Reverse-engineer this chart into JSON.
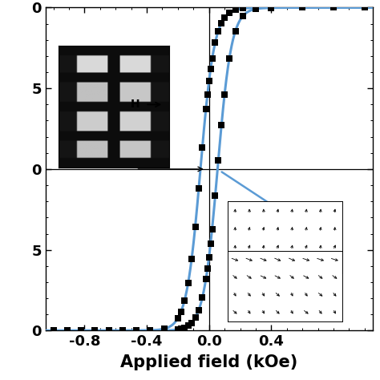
{
  "xlabel": "Applied field (kOe)",
  "xlim": [
    -1.05,
    1.05
  ],
  "ylim": [
    0.0,
    1.0
  ],
  "xticks": [
    -0.8,
    -0.4,
    0.0,
    0.4
  ],
  "xtick_labels": [
    "-0.8",
    "-0.4",
    "0.0",
    "0.4"
  ],
  "ytick_positions": [
    0.0,
    0.25,
    0.5,
    0.75,
    1.0
  ],
  "ytick_labels": [
    "0",
    "5",
    "0",
    "5",
    "0"
  ],
  "line_color": "#5b9bd5",
  "point_color": "#000000",
  "hline_y": 0.5,
  "vline_x": 0.0,
  "Hc": 0.055,
  "alpha_curve": 0.09,
  "Ms": 1.0,
  "line_width": 2.2,
  "marker_size": 28,
  "background_color": "#ffffff",
  "tick_fontsize": 13,
  "xlabel_fontsize": 15
}
